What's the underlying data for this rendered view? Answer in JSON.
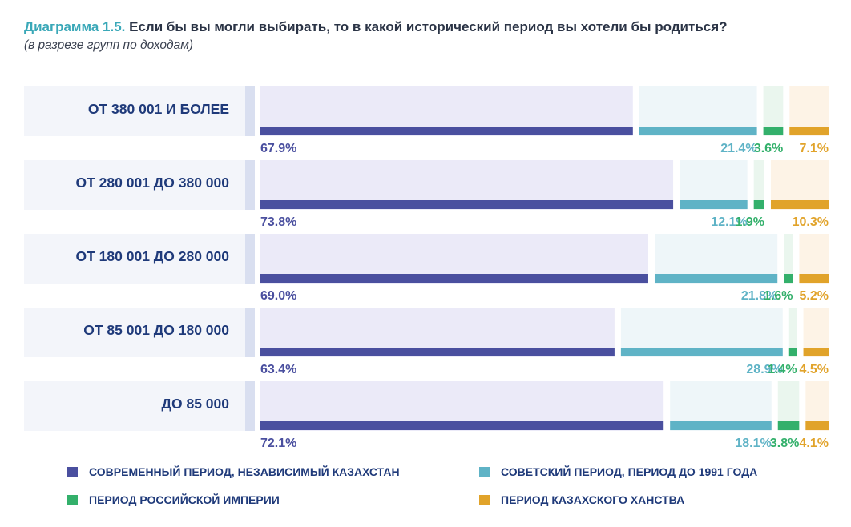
{
  "header": {
    "title_prefix": "Диаграмма 1.5.",
    "title_text": "Если бы вы могли выбирать, то в какой исторический период вы хотели бы родиться?",
    "subtitle": "(в разрезе групп по доходам)"
  },
  "colors": {
    "series": [
      "#4a4f9f",
      "#5fb3c6",
      "#33b06b",
      "#e1a32a"
    ],
    "series_light": [
      "#ebeaf8",
      "#eef6f9",
      "#eaf6ee",
      "#fdf3e6"
    ],
    "label_text": "#1f3a7a",
    "label_bg": "#f3f5fa",
    "sep": "#d9dff0"
  },
  "chart_data": {
    "type": "bar",
    "stacked": true,
    "orientation": "horizontal",
    "unit": "%",
    "categories": [
      "ОТ 380 001 И БОЛЕЕ",
      "ОТ 280 001 ДО 380 000",
      "ОТ 180 001 ДО 280 000",
      "ОТ 85 001 ДО 180 000",
      "ДО 85 000"
    ],
    "series": [
      {
        "name": "СОВРЕМЕННЫЙ ПЕРИОД, НЕЗАВИСИМЫЙ КАЗАХСТАН",
        "values": [
          67.9,
          73.8,
          69.0,
          63.4,
          72.1
        ],
        "labels": [
          "67.9%",
          "73.8%",
          "69.0%",
          "63.4%",
          "72.1%"
        ]
      },
      {
        "name": "СОВЕТСКИЙ ПЕРИОД, ПЕРИОД ДО 1991 ГОДА",
        "values": [
          21.4,
          12.1,
          21.8,
          28.9,
          18.1
        ],
        "labels": [
          "21.4%",
          "12.1%",
          "21.8%",
          "28.9%",
          "18.1%"
        ]
      },
      {
        "name": "ПЕРИОД РОССИЙСКОЙ ИМПЕРИИ",
        "values": [
          3.6,
          1.9,
          1.6,
          1.4,
          3.8
        ],
        "labels": [
          "3.6%",
          "1.9%",
          "1.6%",
          "1.4%",
          "3.8%"
        ]
      },
      {
        "name": "ПЕРИОД КАЗАХСКОГО ХАНСТВА",
        "values": [
          7.1,
          10.3,
          5.2,
          4.5,
          4.1
        ],
        "labels": [
          "7.1%",
          "10.3%",
          "5.2%",
          "4.5%",
          "4.1%"
        ]
      }
    ],
    "legend_position": "bottom"
  }
}
